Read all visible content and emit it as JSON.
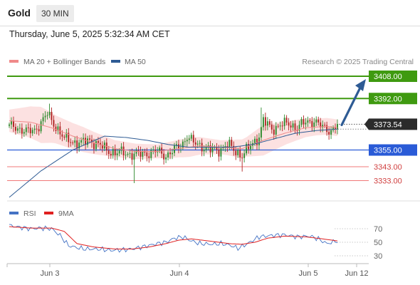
{
  "header": {
    "title": "Gold",
    "timeframe": "30 MIN"
  },
  "timestamp": "Thursday, June 5, 2025 5:32:34 AM CET",
  "legend": [
    {
      "label": "MA 20 + Bollinger Bands",
      "color": "#f08a8a"
    },
    {
      "label": "MA 50",
      "color": "#2e5b94"
    }
  ],
  "credit": "Research © 2025 Trading Central",
  "colors": {
    "up": "#2e8b2e",
    "down": "#b02222",
    "resistance": "#3f9a10",
    "pivot": "#2a5bd7",
    "support": "#f07878",
    "band": "#fcdcdc",
    "ma20": "#f08a8a",
    "ma50": "#2e5b94",
    "rsi": "#4472c4",
    "rsi_ma": "#e02020",
    "arrow": "#2e5b94",
    "current": "#2b2b2b"
  },
  "chart_data": [
    {
      "type": "candlestick",
      "title": "Gold",
      "timeframe": "30 MIN",
      "ylim": [
        3318,
        3418
      ],
      "x_ticks": [
        "Jun 3",
        "Jun 4",
        "Jun 5",
        "Jun 12"
      ],
      "current_price": "3373.54",
      "levels": [
        {
          "label": "3408.00",
          "value": 3408,
          "kind": "resistance"
        },
        {
          "label": "3392.00",
          "value": 3392,
          "kind": "resistance"
        },
        {
          "label": "3355.00",
          "value": 3355,
          "kind": "pivot"
        },
        {
          "label": "3343.00",
          "value": 3343,
          "kind": "support"
        },
        {
          "label": "3333.00",
          "value": 3333,
          "kind": "support"
        }
      ],
      "projection": {
        "from": 3373.5,
        "to": 3408
      },
      "close_anchors": [
        [
          0,
          3372
        ],
        [
          3,
          3371
        ],
        [
          6,
          3370
        ],
        [
          9,
          3368
        ],
        [
          12,
          3369
        ],
        [
          15,
          3375
        ],
        [
          18,
          3381
        ],
        [
          20,
          3376
        ],
        [
          23,
          3370
        ],
        [
          26,
          3363
        ],
        [
          30,
          3361
        ],
        [
          34,
          3360
        ],
        [
          38,
          3362
        ],
        [
          42,
          3359
        ],
        [
          46,
          3355
        ],
        [
          50,
          3353
        ],
        [
          54,
          3353
        ],
        [
          58,
          3352
        ],
        [
          62,
          3352
        ],
        [
          66,
          3353
        ],
        [
          70,
          3354
        ],
        [
          74,
          3351
        ],
        [
          78,
          3355
        ],
        [
          82,
          3360
        ],
        [
          84,
          3365
        ],
        [
          87,
          3360
        ],
        [
          91,
          3358
        ],
        [
          95,
          3355
        ],
        [
          99,
          3355
        ],
        [
          103,
          3359
        ],
        [
          107,
          3354
        ],
        [
          110,
          3351
        ],
        [
          114,
          3358
        ],
        [
          118,
          3365
        ],
        [
          120,
          3376
        ],
        [
          124,
          3370
        ],
        [
          128,
          3373
        ],
        [
          132,
          3374
        ],
        [
          136,
          3371
        ],
        [
          140,
          3375
        ],
        [
          144,
          3376
        ],
        [
          148,
          3371
        ],
        [
          152,
          3369
        ],
        [
          155,
          3373
        ]
      ],
      "ma20_anchors": [
        [
          0,
          3376
        ],
        [
          10,
          3375
        ],
        [
          20,
          3371
        ],
        [
          30,
          3365
        ],
        [
          40,
          3360
        ],
        [
          50,
          3356
        ],
        [
          60,
          3354
        ],
        [
          70,
          3354
        ],
        [
          80,
          3356
        ],
        [
          90,
          3358
        ],
        [
          100,
          3357
        ],
        [
          110,
          3356
        ],
        [
          120,
          3362
        ],
        [
          130,
          3367
        ],
        [
          140,
          3371
        ],
        [
          150,
          3372
        ],
        [
          155,
          3371
        ]
      ],
      "band_width_anchors": [
        [
          0,
          8
        ],
        [
          15,
          13
        ],
        [
          22,
          10
        ],
        [
          35,
          9
        ],
        [
          50,
          6
        ],
        [
          70,
          5
        ],
        [
          85,
          7
        ],
        [
          100,
          5
        ],
        [
          112,
          7
        ],
        [
          120,
          11
        ],
        [
          132,
          8
        ],
        [
          145,
          6
        ],
        [
          155,
          6
        ]
      ],
      "ma50_anchors": [
        [
          0,
          3321
        ],
        [
          15,
          3340
        ],
        [
          30,
          3355
        ],
        [
          45,
          3365
        ],
        [
          55,
          3364
        ],
        [
          65,
          3362
        ],
        [
          75,
          3359
        ],
        [
          85,
          3357
        ],
        [
          95,
          3357
        ],
        [
          105,
          3357
        ],
        [
          115,
          3359
        ],
        [
          125,
          3363
        ],
        [
          135,
          3367
        ],
        [
          145,
          3369
        ],
        [
          155,
          3370
        ]
      ]
    },
    {
      "type": "line",
      "title": "RSI",
      "series": [
        {
          "name": "RSI"
        },
        {
          "name": "9MA"
        }
      ],
      "ylim": [
        20,
        82
      ],
      "y_ticks": [
        "70",
        "50",
        "30"
      ],
      "rsi_anchors": [
        [
          0,
          75
        ],
        [
          5,
          72
        ],
        [
          10,
          70
        ],
        [
          15,
          71
        ],
        [
          20,
          70
        ],
        [
          24,
          60
        ],
        [
          28,
          45
        ],
        [
          32,
          42
        ],
        [
          36,
          40
        ],
        [
          42,
          40
        ],
        [
          48,
          38
        ],
        [
          54,
          39
        ],
        [
          58,
          40
        ],
        [
          64,
          44
        ],
        [
          70,
          48
        ],
        [
          74,
          50
        ],
        [
          78,
          56
        ],
        [
          82,
          58
        ],
        [
          86,
          52
        ],
        [
          90,
          48
        ],
        [
          96,
          47
        ],
        [
          100,
          48
        ],
        [
          104,
          46
        ],
        [
          108,
          41
        ],
        [
          112,
          47
        ],
        [
          118,
          58
        ],
        [
          124,
          60
        ],
        [
          130,
          61
        ],
        [
          136,
          58
        ],
        [
          142,
          59
        ],
        [
          146,
          55
        ],
        [
          150,
          48
        ],
        [
          155,
          52
        ]
      ],
      "ma_anchors": [
        [
          0,
          73
        ],
        [
          10,
          71
        ],
        [
          20,
          71
        ],
        [
          26,
          66
        ],
        [
          32,
          48
        ],
        [
          40,
          43
        ],
        [
          50,
          40
        ],
        [
          58,
          40
        ],
        [
          66,
          43
        ],
        [
          74,
          48
        ],
        [
          80,
          53
        ],
        [
          86,
          55
        ],
        [
          94,
          52
        ],
        [
          104,
          48
        ],
        [
          110,
          47
        ],
        [
          116,
          50
        ],
        [
          122,
          56
        ],
        [
          130,
          59
        ],
        [
          140,
          58
        ],
        [
          148,
          55
        ],
        [
          155,
          52
        ]
      ]
    }
  ]
}
